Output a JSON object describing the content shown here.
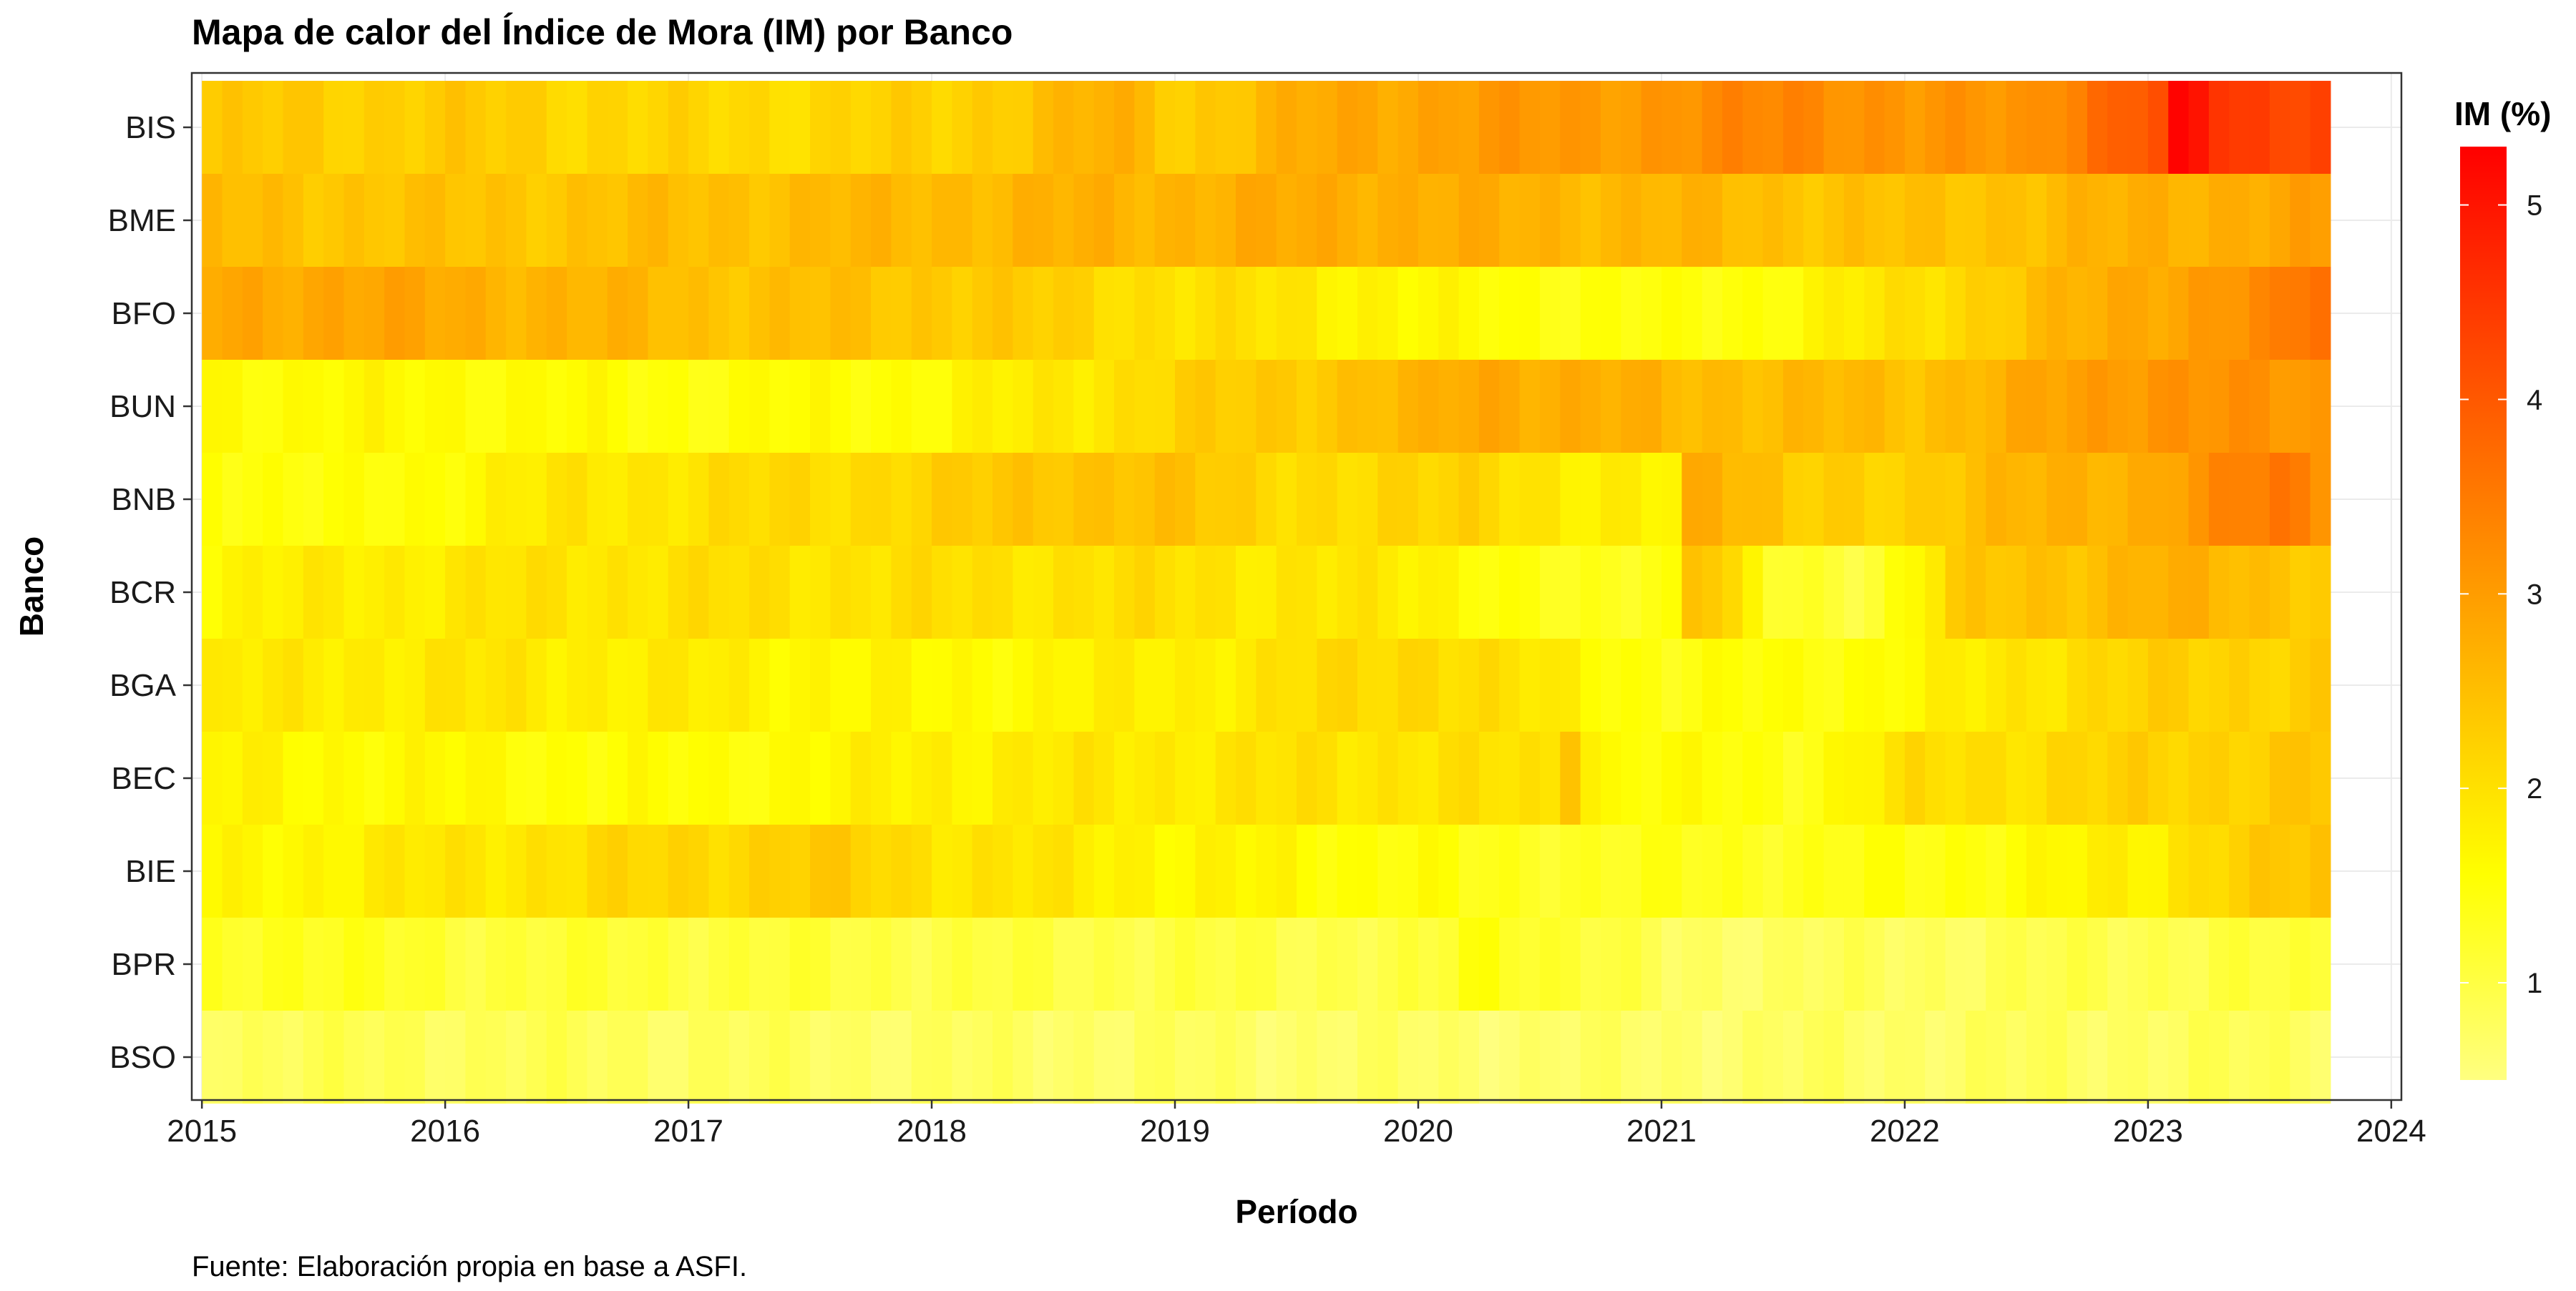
{
  "chart_data": {
    "type": "heatmap",
    "title": "Mapa de calor del Índice de Mora (IM) por Banco",
    "xlabel": "Período",
    "ylabel": "Banco",
    "caption": "Fuente: Elaboración propia en base a ASFI.",
    "legend_title": "IM (%)",
    "legend_position": "right",
    "colorscale": {
      "low": "#FFFF80",
      "mid": "#FFFF00",
      "high": "#FF0000",
      "range": [
        0.5,
        5.3
      ]
    },
    "colorbar_ticks": [
      "1",
      "2",
      "3",
      "4",
      "5"
    ],
    "x_ticks": [
      "2015",
      "2016",
      "2017",
      "2018",
      "2019",
      "2020",
      "2021",
      "2022",
      "2023",
      "2024"
    ],
    "x_range": [
      "2014-12",
      "2024-01"
    ],
    "period_start": "2015-01",
    "period_end": "2023-09",
    "grid": true,
    "banks": [
      "BIS",
      "BME",
      "BFO",
      "BUN",
      "BNB",
      "BCR",
      "BGA",
      "BEC",
      "BIE",
      "BPR",
      "BSO"
    ],
    "series": [
      {
        "name": "BIS",
        "anchors": [
          [
            2015.0,
            2.3
          ],
          [
            2016.0,
            2.3
          ],
          [
            2017.0,
            2.1
          ],
          [
            2018.0,
            2.2
          ],
          [
            2018.7,
            2.7
          ],
          [
            2019.0,
            2.3
          ],
          [
            2019.6,
            2.8
          ],
          [
            2020.2,
            3.0
          ],
          [
            2021.0,
            3.1
          ],
          [
            2021.5,
            3.4
          ],
          [
            2022.0,
            3.0
          ],
          [
            2022.5,
            3.2
          ],
          [
            2023.0,
            4.1
          ],
          [
            2023.1,
            5.3
          ],
          [
            2023.3,
            4.5
          ],
          [
            2023.7,
            4.2
          ]
        ]
      },
      {
        "name": "BME",
        "anchors": [
          [
            2015.0,
            2.5
          ],
          [
            2016.0,
            2.4
          ],
          [
            2017.0,
            2.5
          ],
          [
            2018.0,
            2.6
          ],
          [
            2019.0,
            2.7
          ],
          [
            2019.8,
            2.8
          ],
          [
            2020.2,
            2.7
          ],
          [
            2021.0,
            2.6
          ],
          [
            2022.0,
            2.4
          ],
          [
            2023.0,
            2.7
          ],
          [
            2023.7,
            2.9
          ]
        ]
      },
      {
        "name": "BFO",
        "anchors": [
          [
            2015.0,
            2.8
          ],
          [
            2015.5,
            2.9
          ],
          [
            2016.3,
            2.7
          ],
          [
            2017.0,
            2.5
          ],
          [
            2018.0,
            2.4
          ],
          [
            2018.5,
            2.2
          ],
          [
            2019.0,
            2.0
          ],
          [
            2019.5,
            1.9
          ],
          [
            2020.0,
            1.6
          ],
          [
            2020.5,
            1.5
          ],
          [
            2021.0,
            1.4
          ],
          [
            2021.5,
            1.6
          ],
          [
            2022.0,
            2.0
          ],
          [
            2022.5,
            2.5
          ],
          [
            2023.0,
            2.9
          ],
          [
            2023.5,
            3.3
          ],
          [
            2023.7,
            3.8
          ]
        ]
      },
      {
        "name": "BUN",
        "anchors": [
          [
            2015.0,
            1.6
          ],
          [
            2016.0,
            1.6
          ],
          [
            2017.0,
            1.5
          ],
          [
            2018.0,
            1.6
          ],
          [
            2019.0,
            2.2
          ],
          [
            2020.0,
            2.6
          ],
          [
            2020.2,
            2.9
          ],
          [
            2021.0,
            2.6
          ],
          [
            2022.0,
            2.5
          ],
          [
            2022.5,
            2.8
          ],
          [
            2023.0,
            3.2
          ],
          [
            2023.7,
            3.0
          ]
        ]
      },
      {
        "name": "BNB",
        "anchors": [
          [
            2015.0,
            1.6
          ],
          [
            2015.5,
            1.4
          ],
          [
            2016.5,
            1.9
          ],
          [
            2018.0,
            2.2
          ],
          [
            2018.5,
            2.5
          ],
          [
            2019.0,
            2.4
          ],
          [
            2019.7,
            2.0
          ],
          [
            2020.2,
            2.3
          ],
          [
            2020.6,
            1.7
          ],
          [
            2021.0,
            1.8
          ],
          [
            2021.1,
            3.0
          ],
          [
            2021.5,
            2.2
          ],
          [
            2022.0,
            2.3
          ],
          [
            2022.6,
            2.7
          ],
          [
            2023.0,
            2.8
          ],
          [
            2023.5,
            3.6
          ],
          [
            2023.7,
            3.2
          ]
        ]
      },
      {
        "name": "BCR",
        "anchors": [
          [
            2015.0,
            1.7
          ],
          [
            2016.0,
            1.9
          ],
          [
            2017.0,
            2.0
          ],
          [
            2018.0,
            2.0
          ],
          [
            2019.0,
            2.0
          ],
          [
            2020.0,
            1.8
          ],
          [
            2020.6,
            1.2
          ],
          [
            2021.0,
            1.5
          ],
          [
            2021.1,
            2.8
          ],
          [
            2021.4,
            1.2
          ],
          [
            2021.8,
            1.1
          ],
          [
            2022.2,
            2.3
          ],
          [
            2023.0,
            2.7
          ],
          [
            2023.7,
            2.4
          ]
        ]
      },
      {
        "name": "BGA",
        "anchors": [
          [
            2015.0,
            1.8
          ],
          [
            2016.0,
            1.9
          ],
          [
            2017.0,
            1.8
          ],
          [
            2018.0,
            1.6
          ],
          [
            2019.0,
            1.8
          ],
          [
            2020.0,
            2.2
          ],
          [
            2020.5,
            1.8
          ],
          [
            2021.0,
            1.4
          ],
          [
            2022.0,
            1.6
          ],
          [
            2022.5,
            2.0
          ],
          [
            2023.0,
            2.2
          ],
          [
            2023.7,
            2.3
          ]
        ]
      },
      {
        "name": "BEC",
        "anchors": [
          [
            2015.0,
            1.7
          ],
          [
            2016.0,
            1.6
          ],
          [
            2017.0,
            1.5
          ],
          [
            2018.0,
            1.8
          ],
          [
            2019.0,
            1.9
          ],
          [
            2020.0,
            2.0
          ],
          [
            2020.5,
            1.9
          ],
          [
            2020.55,
            2.9
          ],
          [
            2020.7,
            1.6
          ],
          [
            2021.5,
            1.4
          ],
          [
            2022.0,
            2.0
          ],
          [
            2023.0,
            2.2
          ],
          [
            2023.7,
            2.4
          ]
        ]
      },
      {
        "name": "BIE",
        "anchors": [
          [
            2015.0,
            1.6
          ],
          [
            2016.0,
            1.9
          ],
          [
            2017.5,
            2.3
          ],
          [
            2018.0,
            2.0
          ],
          [
            2019.0,
            1.7
          ],
          [
            2020.0,
            1.5
          ],
          [
            2020.2,
            1.3
          ],
          [
            2021.0,
            1.3
          ],
          [
            2022.0,
            1.4
          ],
          [
            2022.5,
            1.6
          ],
          [
            2023.0,
            1.8
          ],
          [
            2023.2,
            2.2
          ],
          [
            2023.7,
            2.4
          ]
        ]
      },
      {
        "name": "BPR",
        "anchors": [
          [
            2015.0,
            1.2
          ],
          [
            2015.3,
            1.4
          ],
          [
            2016.0,
            1.1
          ],
          [
            2017.0,
            1.1
          ],
          [
            2018.0,
            1.0
          ],
          [
            2019.0,
            1.0
          ],
          [
            2020.0,
            0.95
          ],
          [
            2020.2,
            1.5
          ],
          [
            2021.0,
            0.75
          ],
          [
            2022.0,
            0.8
          ],
          [
            2023.0,
            0.95
          ],
          [
            2023.7,
            1.05
          ]
        ]
      },
      {
        "name": "BSO",
        "anchors": [
          [
            2015.0,
            0.85
          ],
          [
            2016.0,
            0.85
          ],
          [
            2017.0,
            0.8
          ],
          [
            2018.0,
            0.75
          ],
          [
            2019.0,
            0.75
          ],
          [
            2020.0,
            0.7
          ],
          [
            2021.0,
            0.7
          ],
          [
            2022.0,
            0.75
          ],
          [
            2023.0,
            0.8
          ],
          [
            2023.7,
            0.82
          ]
        ]
      }
    ]
  }
}
